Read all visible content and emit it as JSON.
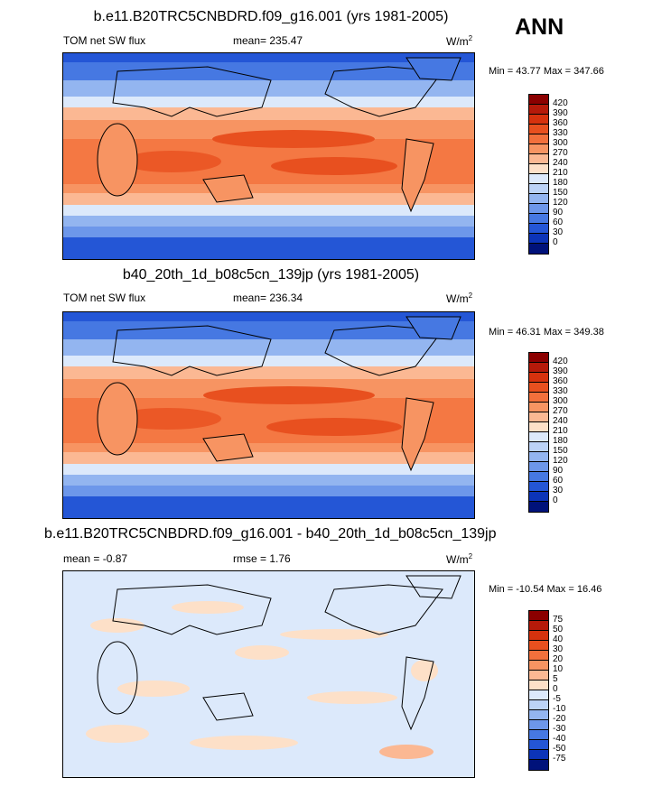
{
  "season": "ANN",
  "panels": [
    {
      "title": "b.e11.B20TRC5CNBDRD.f09_g16.001 (yrs 1981-2005)",
      "left_label": "TOM net SW flux",
      "center_label": "mean= 235.47",
      "units": "W/m",
      "units_exp": "2",
      "minmax": "Min = 43.77 Max = 347.66",
      "colorbar": {
        "labels": [
          "420",
          "390",
          "360",
          "330",
          "300",
          "270",
          "240",
          "210",
          "180",
          "150",
          "120",
          "90",
          "60",
          "30",
          "0"
        ],
        "colors": [
          "#8b0000",
          "#b51a0a",
          "#d6320e",
          "#e8501f",
          "#f2703c",
          "#f79462",
          "#fbb893",
          "#fde0c8",
          "#dce9fb",
          "#bcd3f7",
          "#93b5f0",
          "#6d97ea",
          "#4678e2",
          "#2456d6",
          "#0c34b8",
          "#00127a"
        ]
      }
    },
    {
      "title": "b40_20th_1d_b08c5cn_139jp (yrs 1981-2005)",
      "left_label": "TOM net SW flux",
      "center_label": "mean= 236.34",
      "units": "W/m",
      "units_exp": "2",
      "minmax": "Min = 46.31 Max = 349.38",
      "colorbar": {
        "labels": [
          "420",
          "390",
          "360",
          "330",
          "300",
          "270",
          "240",
          "210",
          "180",
          "150",
          "120",
          "90",
          "60",
          "30",
          "0"
        ],
        "colors": [
          "#8b0000",
          "#b51a0a",
          "#d6320e",
          "#e8501f",
          "#f2703c",
          "#f79462",
          "#fbb893",
          "#fde0c8",
          "#dce9fb",
          "#bcd3f7",
          "#93b5f0",
          "#6d97ea",
          "#4678e2",
          "#2456d6",
          "#0c34b8",
          "#00127a"
        ]
      }
    },
    {
      "title": "b.e11.B20TRC5CNBDRD.f09_g16.001 - b40_20th_1d_b08c5cn_139jp",
      "left_label": "mean =  -0.87",
      "center_label": "rmse =   1.76",
      "units": "W/m",
      "units_exp": "2",
      "minmax": "Min = -10.54 Max =  16.46",
      "colorbar": {
        "labels": [
          "75",
          "50",
          "40",
          "30",
          "20",
          "10",
          "5",
          "0",
          "-5",
          "-10",
          "-20",
          "-30",
          "-40",
          "-50",
          "-75"
        ],
        "colors": [
          "#8b0000",
          "#b51a0a",
          "#d6320e",
          "#e8501f",
          "#f2703c",
          "#f79462",
          "#fbb893",
          "#fde0c8",
          "#dce9fb",
          "#bcd3f7",
          "#93b5f0",
          "#6d97ea",
          "#4678e2",
          "#2456d6",
          "#0c34b8",
          "#00127a"
        ]
      }
    }
  ]
}
